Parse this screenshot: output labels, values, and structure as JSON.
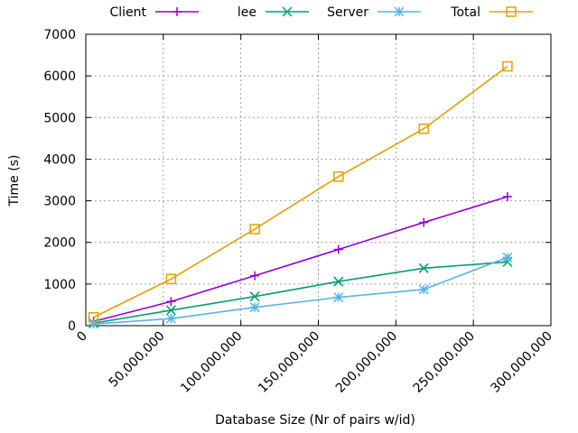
{
  "chart_data": {
    "type": "line",
    "xlabel": "Database Size (Nr of pairs w/id)",
    "ylabel": "Time (s)",
    "xlim": [
      0,
      300000000
    ],
    "ylim": [
      0,
      7000
    ],
    "grid": true,
    "legend_position": "top",
    "x_ticks": [
      0,
      50000000,
      100000000,
      150000000,
      200000000,
      250000000,
      300000000
    ],
    "x_tick_labels": [
      "0",
      "50,000,000",
      "100,000,000",
      "150,000,000",
      "200,000,000",
      "250,000,000",
      "300,000,000"
    ],
    "y_ticks": [
      0,
      1000,
      2000,
      3000,
      4000,
      5000,
      6000,
      7000
    ],
    "y_tick_labels": [
      "0",
      "1000",
      "2000",
      "3000",
      "4000",
      "5000",
      "6000",
      "7000"
    ],
    "x": [
      5000000,
      55000000,
      109000000,
      163000000,
      218000000,
      272000000
    ],
    "series": [
      {
        "name": "Client",
        "color": "#9400d3",
        "marker": "plus",
        "values": [
          100,
          580,
          1200,
          1830,
          2480,
          3100
        ]
      },
      {
        "name": "lee",
        "color": "#009e73",
        "marker": "cross",
        "values": [
          60,
          370,
          700,
          1060,
          1380,
          1530
        ]
      },
      {
        "name": "Server",
        "color": "#56b4e9",
        "marker": "star",
        "values": [
          40,
          170,
          440,
          680,
          870,
          1640
        ]
      },
      {
        "name": "Total",
        "color": "#e69f00",
        "marker": "square",
        "values": [
          200,
          1120,
          2320,
          3580,
          4730,
          6230
        ]
      }
    ]
  }
}
